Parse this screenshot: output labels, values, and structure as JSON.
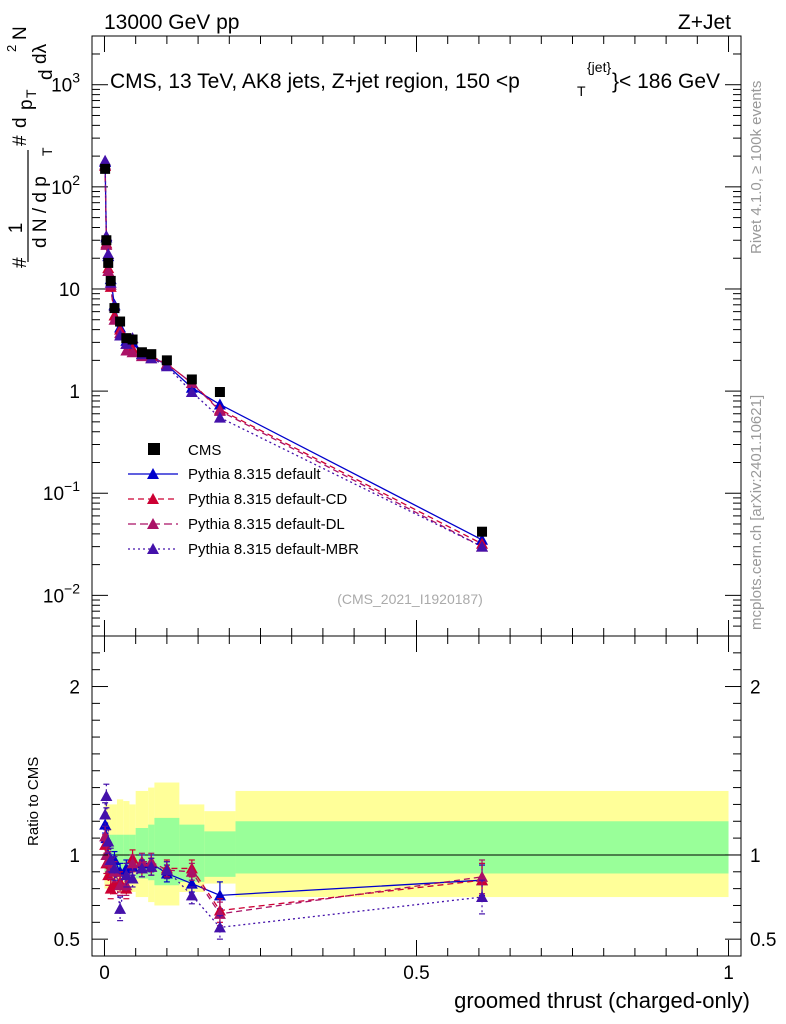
{
  "header": {
    "left": "13000 GeV pp",
    "right": "Z+Jet"
  },
  "side_labels": {
    "rivet": "Rivet 4.1.0, ≥ 100k events",
    "mcplots": "mcplots.cern.ch [arXiv:2401.10621]"
  },
  "plot": {
    "title_prefix": "CMS, 13 TeV, AK8 jets, Z+jet region, 150 <p",
    "title_sup": "{jet}",
    "title_sub": "T",
    "title_suffix": "}< 186 GeV",
    "watermark": "(CMS_2021_I1920187)",
    "ylabel_parts": [
      "#",
      "1",
      "d N / d p",
      "T",
      "#",
      "d",
      "p",
      "T",
      "d",
      "N",
      "2",
      "dλ"
    ],
    "ratio_ylabel": "Ratio to CMS",
    "xlabel": "groomed thrust (charged-only)",
    "legend": {
      "cms": "CMS",
      "default": "Pythia 8.315 default",
      "cd": "Pythia 8.315 default-CD",
      "dl": "Pythia 8.315 default-DL",
      "mbr": "Pythia 8.315 default-MBR"
    }
  },
  "colors": {
    "data": "#000000",
    "default": "#0000cc",
    "cd": "#cc0033",
    "dl": "#aa1166",
    "mbr": "#4411aa",
    "band_inner": "#99ff99",
    "band_outer": "#ffff99"
  },
  "chart_data": {
    "type": "scatter",
    "title": "CMS, 13 TeV, AK8 jets, Z+jet region, 150 <pT{jet}< 186 GeV",
    "xlabel": "groomed thrust (charged-only)",
    "ylabel": "1/N dN/dpT dlambda",
    "xlim": [
      -0.02,
      1.02
    ],
    "ylim_main": [
      0.004,
      3000
    ],
    "ylog": true,
    "ylim_ratio": [
      0.4,
      2.3
    ],
    "ratio_ylabel": "Ratio to CMS",
    "x_ticks": [
      0,
      0.5,
      1
    ],
    "x_tick_labels": [
      "0",
      "0.5",
      "1"
    ],
    "main_y_ticks": [
      0.01,
      0.1,
      1,
      10,
      100,
      1000
    ],
    "main_y_tick_labels": [
      {
        "base": "10",
        "exp": "−2"
      },
      {
        "base": "10",
        "exp": "−1"
      },
      {
        "base": "1",
        "exp": ""
      },
      {
        "base": "10",
        "exp": ""
      },
      {
        "base": "10",
        "exp": "2"
      },
      {
        "base": "10",
        "exp": "3"
      }
    ],
    "ratio_y_ticks": [
      0.5,
      1,
      2
    ],
    "ratio_y_tick_labels": [
      "0.5",
      "1",
      "2"
    ],
    "bin_edges": [
      0,
      0.002,
      0.004,
      0.008,
      0.012,
      0.02,
      0.03,
      0.04,
      0.05,
      0.07,
      0.08,
      0.12,
      0.16,
      0.21,
      1.0
    ],
    "x": [
      0.001,
      0.003,
      0.006,
      0.01,
      0.016,
      0.025,
      0.035,
      0.045,
      0.06,
      0.075,
      0.1,
      0.14,
      0.185,
      0.605
    ],
    "cms": {
      "values": [
        150,
        30,
        18,
        12,
        6.5,
        4.8,
        3.3,
        3.2,
        2.4,
        2.3,
        2.0,
        1.3,
        0.98,
        0.042
      ],
      "band_inner": [
        [
          0.9,
          1.12
        ],
        [
          0.9,
          1.12
        ],
        [
          0.9,
          1.12
        ],
        [
          0.9,
          1.12
        ],
        [
          0.9,
          1.12
        ],
        [
          0.9,
          1.12
        ],
        [
          0.9,
          1.12
        ],
        [
          0.9,
          1.12
        ],
        [
          0.86,
          1.16
        ],
        [
          0.85,
          1.18
        ],
        [
          0.82,
          1.22
        ],
        [
          0.84,
          1.18
        ],
        [
          0.87,
          1.14
        ],
        [
          0.89,
          1.2
        ]
      ],
      "band_outer": [
        [
          0.8,
          1.3
        ],
        [
          0.8,
          1.3
        ],
        [
          0.8,
          1.3
        ],
        [
          0.8,
          1.3
        ],
        [
          0.8,
          1.3
        ],
        [
          0.78,
          1.33
        ],
        [
          0.77,
          1.32
        ],
        [
          0.78,
          1.3
        ],
        [
          0.75,
          1.38
        ],
        [
          0.72,
          1.4
        ],
        [
          0.7,
          1.43
        ],
        [
          0.78,
          1.3
        ],
        [
          0.83,
          1.26
        ],
        [
          0.75,
          1.38
        ]
      ]
    },
    "series": [
      {
        "key": "default",
        "name": "Pythia 8.315 default",
        "style": "solid",
        "values": [
          175,
          32,
          21,
          12.5,
          7,
          4.2,
          3.1,
          3.0,
          2.3,
          2.2,
          1.8,
          1.08,
          0.74,
          0.035
        ],
        "ratio": [
          1.18,
          1.1,
          1.0,
          0.95,
          0.97,
          0.9,
          0.92,
          0.93,
          0.95,
          0.95,
          0.89,
          0.83,
          0.76,
          0.85
        ],
        "ratio_err": [
          0.05,
          0.05,
          0.05,
          0.05,
          0.05,
          0.05,
          0.05,
          0.05,
          0.05,
          0.05,
          0.05,
          0.05,
          0.08,
          0.09
        ]
      },
      {
        "key": "cd",
        "name": "Pythia 8.315 default-CD",
        "style": "dashed",
        "values": [
          160,
          28,
          16,
          10.5,
          5.5,
          4.0,
          2.9,
          2.6,
          2.3,
          2.2,
          1.85,
          1.2,
          0.66,
          0.032
        ],
        "ratio": [
          1.06,
          0.95,
          0.88,
          0.8,
          0.83,
          0.84,
          0.8,
          0.98,
          0.92,
          0.93,
          0.92,
          0.92,
          0.67,
          0.85
        ],
        "ratio_err": [
          0.06,
          0.06,
          0.06,
          0.06,
          0.06,
          0.06,
          0.06,
          0.05,
          0.05,
          0.05,
          0.05,
          0.05,
          0.07,
          0.1
        ]
      },
      {
        "key": "dl",
        "name": "Pythia 8.315 default-DL",
        "style": "dashed",
        "values": [
          165,
          27,
          15,
          11,
          5.0,
          3.7,
          2.5,
          2.4,
          2.2,
          2.1,
          1.85,
          1.2,
          0.64,
          0.03
        ],
        "ratio": [
          1.11,
          1.0,
          0.96,
          0.92,
          0.9,
          0.82,
          0.82,
          0.95,
          0.96,
          0.96,
          0.91,
          0.9,
          0.65,
          0.87
        ],
        "ratio_err": [
          0.06,
          0.06,
          0.06,
          0.06,
          0.06,
          0.06,
          0.06,
          0.05,
          0.05,
          0.05,
          0.05,
          0.05,
          0.07,
          0.1
        ]
      },
      {
        "key": "mbr",
        "name": "Pythia 8.315 default-MBR",
        "style": "dotted",
        "values": [
          180,
          33,
          22,
          11.5,
          6.8,
          3.5,
          2.9,
          3.3,
          2.3,
          2.1,
          1.75,
          0.98,
          0.55,
          0.03
        ],
        "ratio": [
          1.24,
          1.35,
          1.08,
          0.97,
          0.92,
          0.68,
          0.88,
          0.86,
          0.92,
          0.93,
          0.91,
          0.76,
          0.57,
          0.75
        ],
        "ratio_err": [
          0.07,
          0.07,
          0.07,
          0.07,
          0.07,
          0.07,
          0.07,
          0.05,
          0.05,
          0.05,
          0.05,
          0.05,
          0.07,
          0.1
        ]
      }
    ]
  }
}
